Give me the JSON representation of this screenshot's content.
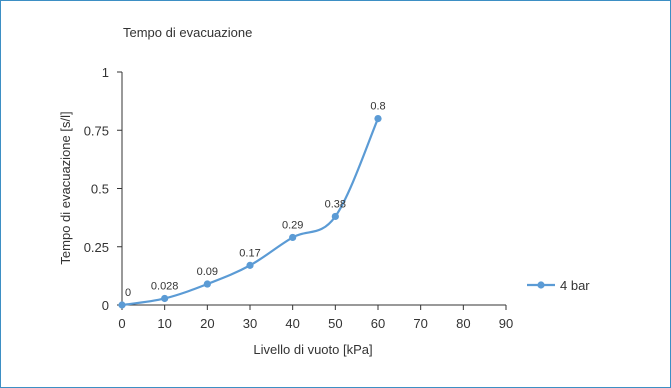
{
  "chart_data": {
    "type": "line",
    "title": "Tempo di evacuazione",
    "xlabel": "Livello di vuoto [kPa]",
    "ylabel": "Tempo di evacuazione [s/l]",
    "xlim": [
      0,
      90
    ],
    "ylim": [
      0,
      1
    ],
    "x_ticks": [
      "0",
      "10",
      "20",
      "30",
      "40",
      "50",
      "60",
      "70",
      "80",
      "90"
    ],
    "y_ticks": [
      "0",
      "0.25",
      "0.5",
      "0.75",
      "1"
    ],
    "grid": false,
    "legend_position": "right",
    "smooth": true,
    "series": [
      {
        "name": "4 bar",
        "color": "#5b9bd5",
        "x": [
          0,
          10,
          20,
          30,
          40,
          50,
          60
        ],
        "y": [
          0,
          0.028,
          0.09,
          0.17,
          0.29,
          0.38,
          0.8
        ],
        "labels": [
          "0",
          "0.028",
          "0.09",
          "0.17",
          "0.29",
          "0.38",
          "0.8"
        ]
      }
    ]
  },
  "colors": {
    "border": "#3d8fc4",
    "axis": "#333333"
  }
}
